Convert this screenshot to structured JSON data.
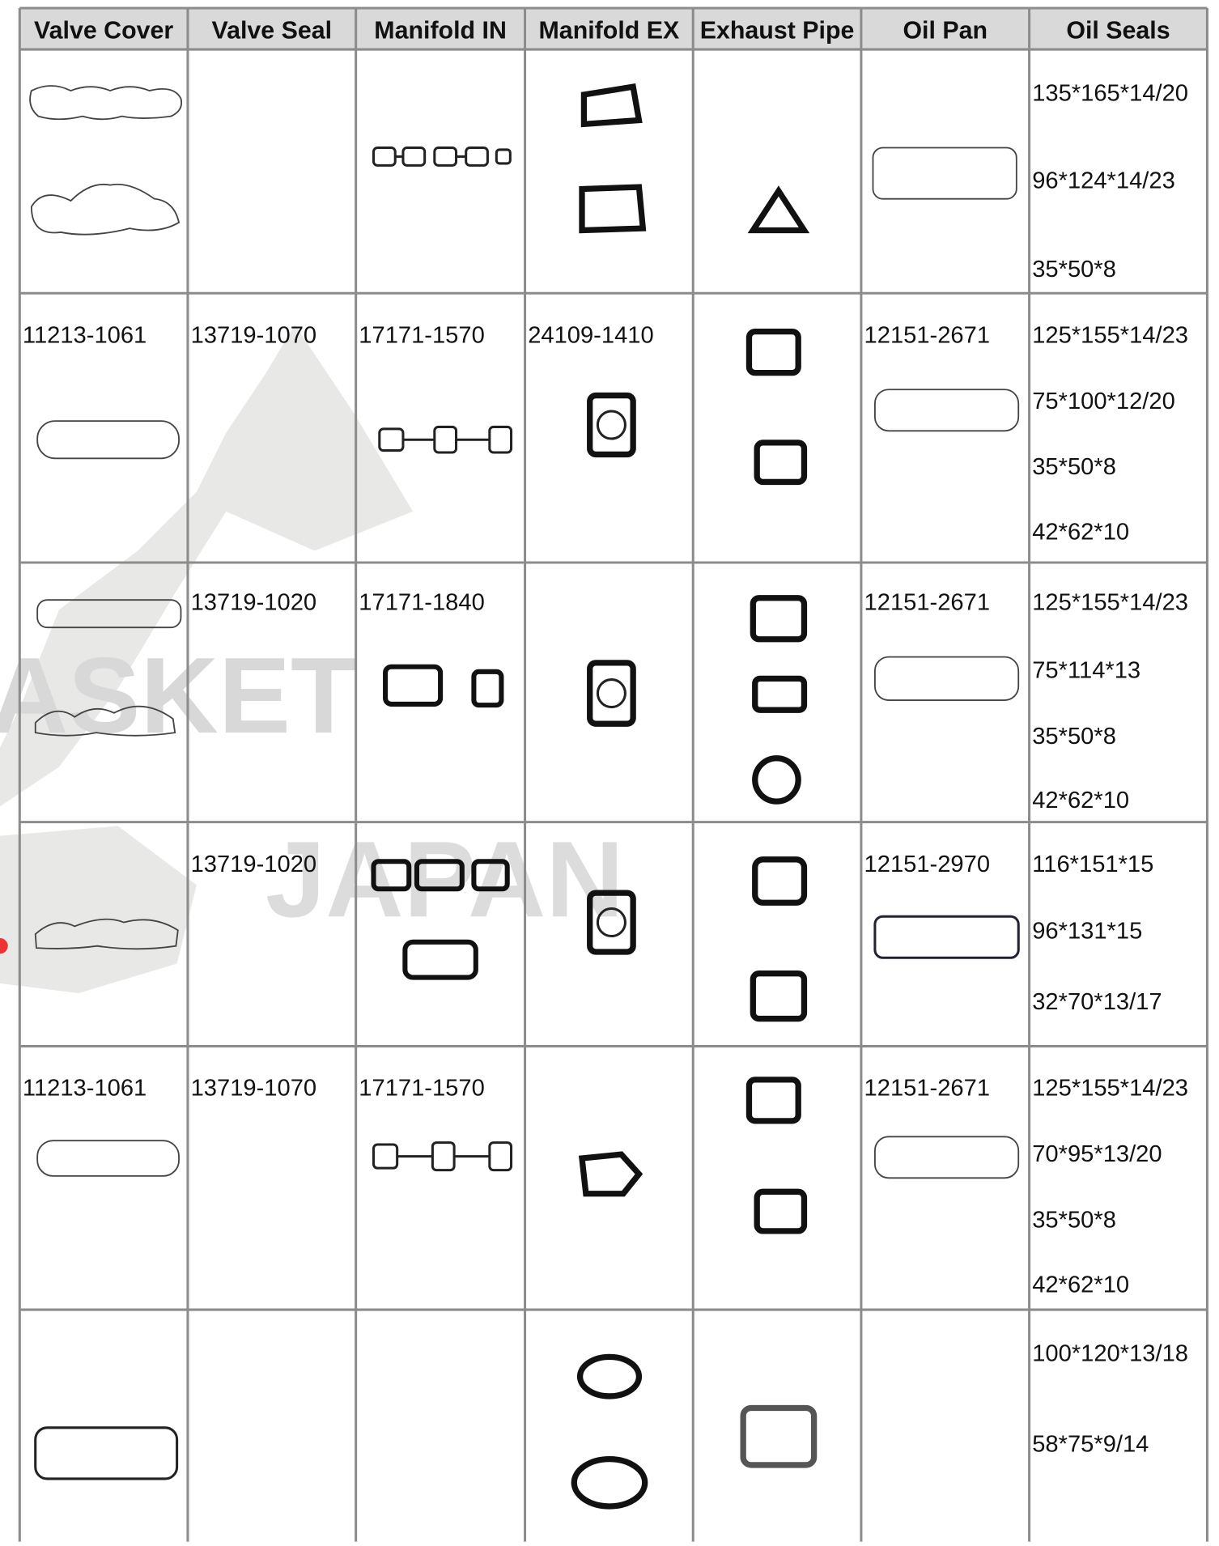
{
  "watermark": {
    "word1": "ASKET",
    "word2": "JAPAN"
  },
  "table": {
    "header": [
      "Valve Cover",
      "Valve Seal",
      "Manifold IN",
      "Manifold EX",
      "Exhaust Pipe",
      "Oil Pan",
      "Oil Seals"
    ],
    "rows": [
      {
        "oil_seals": [
          "135*165*14/20",
          "96*124*14/23",
          "35*50*8"
        ]
      },
      {
        "valve_cover": "11213-1061",
        "valve_seal": "13719-1070",
        "manifold_in": "17171-1570",
        "manifold_ex": "24109-1410",
        "oil_pan": "12151-2671",
        "oil_seals": [
          "125*155*14/23",
          "75*100*12/20",
          "35*50*8",
          "42*62*10"
        ]
      },
      {
        "valve_seal": "13719-1020",
        "manifold_in": "17171-1840",
        "oil_pan": "12151-2671",
        "oil_seals": [
          "125*155*14/23",
          "75*114*13",
          "35*50*8",
          "42*62*10"
        ]
      },
      {
        "valve_seal": "13719-1020",
        "oil_pan": "12151-2970",
        "oil_seals": [
          "116*151*15",
          "96*131*15",
          "32*70*13/17"
        ]
      },
      {
        "valve_cover": "11213-1061",
        "valve_seal": "13719-1070",
        "manifold_in": "17171-1570",
        "oil_pan": "12151-2671",
        "oil_seals": [
          "125*155*14/23",
          "70*95*13/20",
          "35*50*8",
          "42*62*10"
        ]
      },
      {
        "oil_seals": [
          "100*120*13/18",
          "58*75*9/14"
        ]
      }
    ]
  }
}
